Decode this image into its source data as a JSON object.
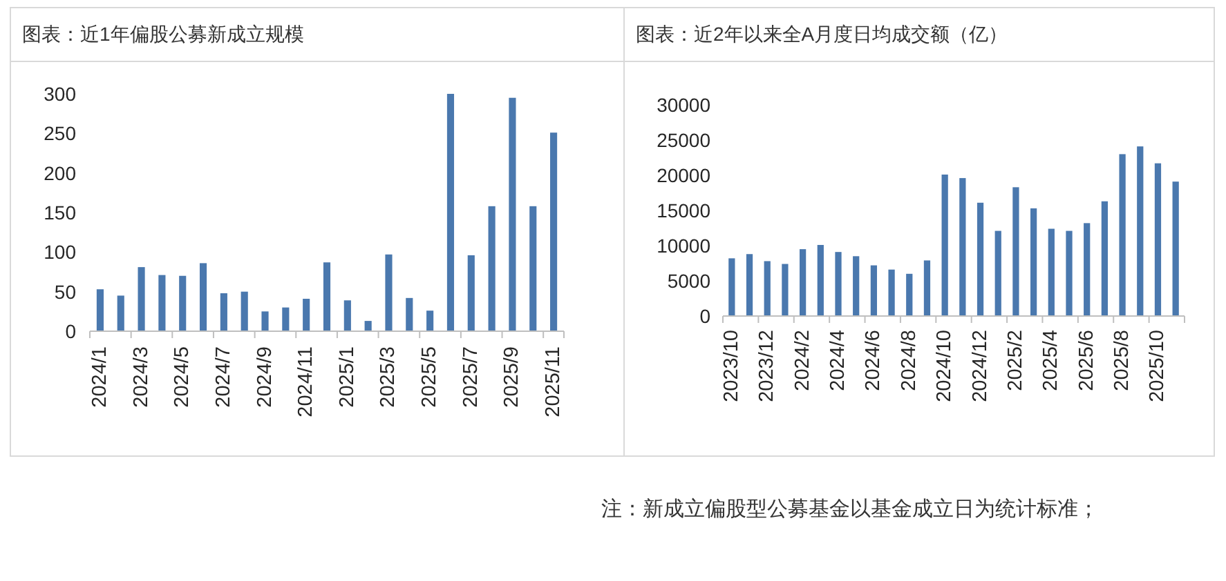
{
  "chart_data": [
    {
      "type": "bar",
      "title": "图表：近1年偏股公募新成立规模",
      "categories": [
        "2024/1",
        null,
        "2024/3",
        null,
        "2024/5",
        null,
        "2024/7",
        null,
        "2024/9",
        null,
        "2024/11",
        null,
        "2025/1",
        null,
        "2025/3",
        null,
        "2025/5",
        null,
        "2025/7",
        null,
        "2025/9",
        null,
        "2025/11"
      ],
      "values": [
        53,
        45,
        81,
        71,
        70,
        86,
        48,
        50,
        25,
        30,
        41,
        87,
        39,
        13,
        97,
        42,
        26,
        300,
        96,
        158,
        295,
        158,
        251
      ],
      "color": "#4a78ae",
      "ylim": [
        0,
        300
      ],
      "yticks": [
        0,
        50,
        100,
        150,
        200,
        250,
        300
      ],
      "annotations": [
        "注：新成立偏股型公募基金以基金成立日为统计标准；"
      ]
    },
    {
      "type": "bar",
      "title": "图表：近2年以来全A月度日均成交额（亿）",
      "categories": [
        "2023/10",
        null,
        "2023/12",
        null,
        "2024/2",
        null,
        "2024/4",
        null,
        "2024/6",
        null,
        "2024/8",
        null,
        "2024/10",
        null,
        "2024/12",
        null,
        "2025/2",
        null,
        "2025/4",
        null,
        "2025/6",
        null,
        "2025/8",
        null,
        "2025/10",
        null
      ],
      "values": [
        8200,
        8800,
        7800,
        7400,
        9500,
        10100,
        9100,
        8500,
        7200,
        6600,
        6000,
        7900,
        20100,
        19600,
        16100,
        12100,
        18300,
        15300,
        12400,
        12100,
        13200,
        16300,
        23000,
        24100,
        21700,
        19100
      ],
      "color": "#4a78ae",
      "ylim": [
        0,
        30000
      ],
      "yticks": [
        0,
        5000,
        10000,
        15000,
        20000,
        25000,
        30000
      ]
    }
  ]
}
